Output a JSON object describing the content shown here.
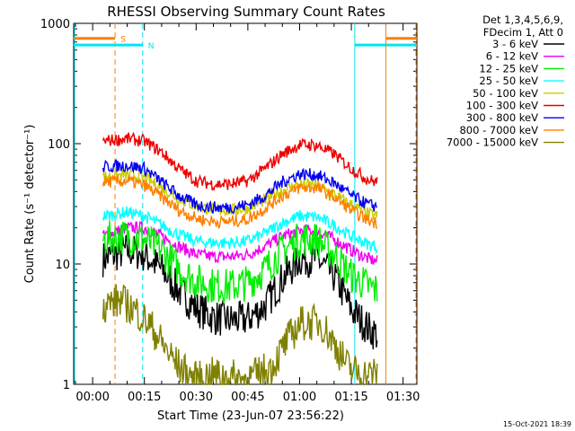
{
  "chart_data": {
    "type": "line",
    "title": "RHESSI Observing Summary Count Rates",
    "xlabel": "Start Time (23-Jun-07 23:56:22)",
    "ylabel": "Count Rate (s⁻¹ detector⁻¹)",
    "y_scale": "log",
    "ylim": [
      1,
      1000
    ],
    "xlim_minutes": [
      -5.5,
      94
    ],
    "x_tick_labels": [
      "00:00",
      "00:15",
      "00:30",
      "00:45",
      "01:00",
      "01:15",
      "01:30"
    ],
    "x_tick_minutes": [
      0,
      15,
      30,
      45,
      60,
      75,
      90
    ],
    "y_tick_labels": [
      "1",
      "10",
      "100",
      "1000"
    ],
    "y_tick_values": [
      1,
      10,
      100,
      1000
    ],
    "legend_header": [
      "Det 1,3,4,5,6,9,",
      "FDecim 1, Att 0"
    ],
    "legend_position": "right",
    "timestamp": "15-Oct-2021 18:39",
    "series": [
      {
        "name": "3 - 6 keV",
        "color": "#000000",
        "x": [
          3,
          10,
          15,
          20,
          25,
          30,
          35,
          40,
          45,
          50,
          55,
          60,
          65,
          70,
          75,
          80,
          82.5
        ],
        "y": [
          11,
          13,
          12,
          9,
          6,
          4.3,
          3.6,
          3.4,
          3.5,
          4.5,
          7.5,
          11,
          11,
          8,
          4.2,
          2.9,
          2.6
        ]
      },
      {
        "name": "6 - 12 keV",
        "color": "#ee00ee",
        "x": [
          3,
          10,
          15,
          20,
          25,
          30,
          35,
          40,
          45,
          50,
          55,
          60,
          65,
          70,
          75,
          80,
          82.5
        ],
        "y": [
          17,
          20,
          20,
          17,
          14,
          12,
          11.5,
          11.5,
          12,
          14,
          17,
          19,
          19,
          16,
          13,
          11,
          10.5
        ]
      },
      {
        "name": "12 - 25 keV",
        "color": "#00ee00",
        "x": [
          3,
          10,
          15,
          20,
          25,
          30,
          35,
          40,
          45,
          50,
          55,
          60,
          65,
          70,
          75,
          80,
          82.5
        ],
        "y": [
          16,
          17,
          16,
          13,
          9,
          7.2,
          6.6,
          6.5,
          7,
          9,
          13,
          16,
          16,
          12,
          8,
          6.5,
          6
        ]
      },
      {
        "name": "25 - 50 keV",
        "color": "#00ffff",
        "x": [
          3,
          10,
          15,
          20,
          25,
          30,
          35,
          40,
          45,
          50,
          55,
          60,
          65,
          70,
          75,
          80,
          82.5
        ],
        "y": [
          25,
          27,
          25,
          21,
          17.5,
          15.5,
          15,
          15,
          15.5,
          18,
          22,
          25,
          24.5,
          21,
          17,
          14.5,
          14
        ]
      },
      {
        "name": "50 - 100 keV",
        "color": "#cccc00",
        "x": [
          3,
          10,
          15,
          20,
          25,
          30,
          35,
          40,
          45,
          50,
          55,
          60,
          65,
          70,
          75,
          80,
          82.5
        ],
        "y": [
          53,
          55,
          52,
          43,
          35,
          30,
          28.5,
          28,
          29,
          34,
          41,
          46,
          45,
          38,
          31,
          26,
          25
        ]
      },
      {
        "name": "100 - 300 keV",
        "color": "#ee0000",
        "x": [
          3,
          10,
          15,
          20,
          25,
          30,
          35,
          40,
          45,
          50,
          55,
          60,
          65,
          70,
          75,
          80,
          82.5
        ],
        "y": [
          105,
          110,
          105,
          85,
          62,
          49,
          46,
          46,
          49,
          62,
          82,
          98,
          97,
          82,
          62,
          50,
          48
        ]
      },
      {
        "name": "300 - 800 keV",
        "color": "#0000ee",
        "x": [
          3,
          10,
          15,
          20,
          25,
          30,
          35,
          40,
          45,
          50,
          55,
          60,
          65,
          70,
          75,
          80,
          82.5
        ],
        "y": [
          64,
          66,
          62,
          48,
          37,
          31,
          29.5,
          29.5,
          31,
          37,
          48,
          56,
          55,
          47,
          37,
          31,
          30
        ]
      },
      {
        "name": "800 - 7000 keV",
        "color": "#ff7f00",
        "x": [
          3,
          10,
          15,
          20,
          25,
          30,
          35,
          40,
          45,
          50,
          55,
          60,
          65,
          70,
          75,
          80,
          82.5
        ],
        "y": [
          48,
          49,
          45,
          36,
          28,
          24,
          22.5,
          22.5,
          23.5,
          29,
          37,
          43,
          43,
          36,
          28,
          23,
          22
        ]
      },
      {
        "name": "7000 - 15000 keV",
        "color": "#808000",
        "x": [
          3,
          8,
          13,
          17,
          21,
          25,
          30,
          35,
          45,
          52,
          56,
          60,
          66,
          70,
          74,
          78,
          82.5
        ],
        "y": [
          4.5,
          5,
          4,
          3,
          2,
          1.4,
          1.1,
          1.2,
          1.1,
          1.4,
          2.2,
          3.2,
          3.3,
          2.2,
          1.4,
          1.2,
          1.2
        ]
      }
    ],
    "markers": [
      {
        "label": "S",
        "color": "#ff7f00",
        "x": [
          -5.5,
          6.5
        ],
        "y": 750,
        "dash": true
      },
      {
        "label": "N",
        "color": "#00e5ee",
        "x": [
          -5.5,
          14.5
        ],
        "y": 660,
        "dash": true
      },
      {
        "label": "",
        "color": "#00e5ee",
        "x": [
          76,
          94
        ],
        "y": 660,
        "dash": false
      },
      {
        "label": "",
        "color": "#ff7f00",
        "x": [
          85,
          94
        ],
        "y": 750,
        "dash": false
      }
    ],
    "grid": false
  }
}
